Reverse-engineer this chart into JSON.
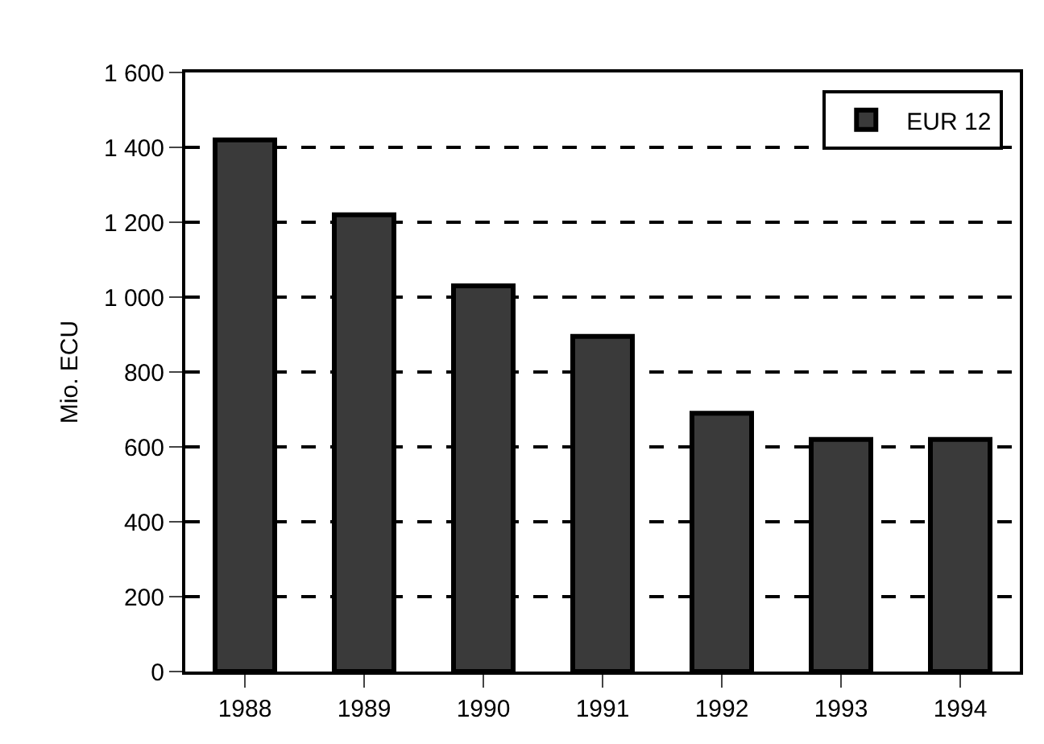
{
  "chart_data": {
    "type": "bar",
    "ylabel": "Mio. ECU",
    "categories": [
      "1988",
      "1989",
      "1990",
      "1991",
      "1992",
      "1993",
      "1994"
    ],
    "series": [
      {
        "name": "EUR 12",
        "color": "#3a3a3a",
        "values": [
          1420,
          1220,
          1030,
          895,
          690,
          620,
          620
        ]
      }
    ],
    "ylim": [
      0,
      1600
    ],
    "yticks": [
      0,
      {
        "value": 200,
        "label": "200"
      },
      {
        "value": 400,
        "label": "400"
      },
      {
        "value": 600,
        "label": "600"
      },
      {
        "value": 800,
        "label": "800"
      },
      {
        "value": 1000,
        "label": "1 000"
      },
      {
        "value": 1200,
        "label": "1 200"
      },
      {
        "value": 1400,
        "label": "1 400"
      },
      {
        "value": 1600,
        "label": "1 600"
      }
    ],
    "grid": "y",
    "legend": "top right",
    "line_style": "dashed"
  }
}
